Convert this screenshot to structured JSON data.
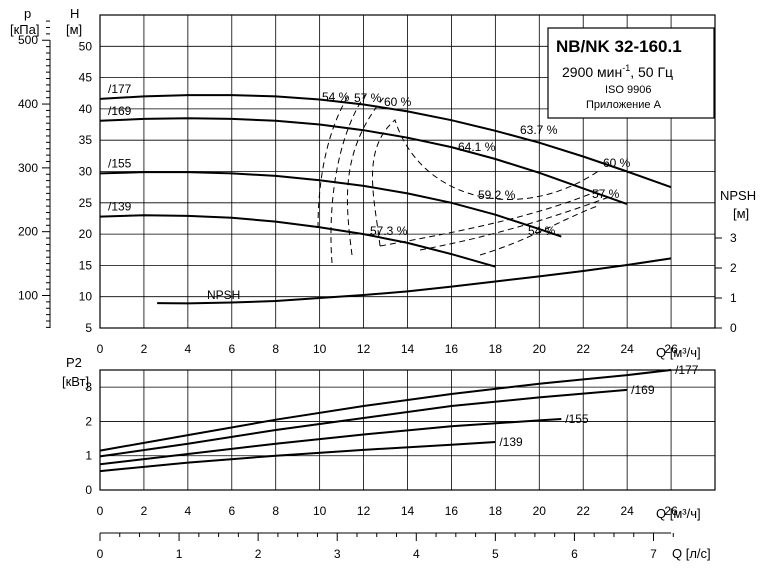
{
  "chart_data": [
    {
      "type": "line",
      "title": "NB/NK 32-160.1",
      "subtitle_lines": [
        "2900 мин",
        "-1",
        ", 50 Гц",
        "ISO 9906",
        "Приложение А"
      ],
      "xlabel": "Q [м³/ч]",
      "ylabel": "H",
      "ylabel_unit": "[м]",
      "pressure_label": "p",
      "pressure_unit": "[кПа]",
      "npsh_label": "NPSH",
      "npsh_unit": "[м]",
      "xlim": [
        0,
        28
      ],
      "ylim": [
        5,
        55
      ],
      "x_ticks": [
        "0",
        "2",
        "4",
        "6",
        "8",
        "10",
        "12",
        "14",
        "16",
        "18",
        "20",
        "22",
        "24",
        "26"
      ],
      "y_ticks": [
        "5",
        "10",
        "15",
        "20",
        "25",
        "30",
        "35",
        "40",
        "45",
        "50"
      ],
      "pressure_ticks": [
        "100",
        "200",
        "300",
        "400",
        "500"
      ],
      "npsh_ticks": [
        "0",
        "1",
        "2",
        "3"
      ],
      "series": [
        {
          "name": "/177",
          "x": [
            0,
            2,
            4,
            6,
            8,
            10,
            12,
            14,
            16,
            18,
            20,
            22,
            24,
            26
          ],
          "y": [
            41.6,
            42.0,
            42.2,
            42.2,
            42.0,
            41.5,
            40.7,
            39.6,
            38.2,
            36.5,
            34.6,
            32.4,
            30.0,
            27.5
          ]
        },
        {
          "name": "/169",
          "x": [
            0,
            2,
            4,
            6,
            8,
            10,
            12,
            14,
            16,
            18,
            20,
            22,
            24
          ],
          "y": [
            38.1,
            38.4,
            38.5,
            38.4,
            38.1,
            37.5,
            36.6,
            35.4,
            33.9,
            32.0,
            29.8,
            27.3,
            24.8
          ]
        },
        {
          "name": "/155",
          "x": [
            0,
            2,
            4,
            6,
            8,
            10,
            12,
            14,
            16,
            18,
            20,
            21
          ],
          "y": [
            29.7,
            29.9,
            29.9,
            29.7,
            29.3,
            28.6,
            27.7,
            26.5,
            25.0,
            23.1,
            20.8,
            19.6
          ]
        },
        {
          "name": "/139",
          "x": [
            0,
            2,
            4,
            6,
            8,
            10,
            12,
            14,
            16,
            18
          ],
          "y": [
            22.8,
            23.0,
            22.9,
            22.6,
            22.0,
            21.1,
            20.0,
            18.6,
            16.8,
            14.8
          ]
        }
      ],
      "npsh_series": {
        "name": "NPSH",
        "x": [
          2.6,
          4,
          6,
          8,
          10,
          12,
          14,
          16,
          18,
          20,
          22,
          24,
          26
        ],
        "y": [
          0.83,
          0.82,
          0.85,
          0.9,
          1.0,
          1.1,
          1.22,
          1.38,
          1.55,
          1.72,
          1.9,
          2.1,
          2.32
        ]
      },
      "efficiency_labels": [
        "54 %",
        "57 %",
        "60 %",
        "63.7 %",
        "64.1 %",
        "59.2 %",
        "57.3 %",
        "54 %",
        "57 %",
        "60 %"
      ]
    },
    {
      "type": "line",
      "ylabel": "P2",
      "ylabel_unit": "[кВт]",
      "xlabel": "Q [м³/ч]",
      "xlim": [
        0,
        28
      ],
      "ylim": [
        0,
        3.5
      ],
      "x_ticks": [
        "0",
        "2",
        "4",
        "6",
        "8",
        "10",
        "12",
        "14",
        "16",
        "18",
        "20",
        "22",
        "24",
        "26"
      ],
      "y_ticks": [
        "0",
        "1",
        "2",
        "3"
      ],
      "series": [
        {
          "name": "/177",
          "x": [
            0,
            4,
            8,
            12,
            16,
            20,
            24,
            26
          ],
          "y": [
            1.15,
            1.6,
            2.05,
            2.45,
            2.8,
            3.1,
            3.35,
            3.5
          ]
        },
        {
          "name": "/169",
          "x": [
            0,
            4,
            8,
            12,
            16,
            20,
            24
          ],
          "y": [
            0.98,
            1.35,
            1.75,
            2.1,
            2.45,
            2.7,
            2.92
          ]
        },
        {
          "name": "/155",
          "x": [
            0,
            4,
            8,
            12,
            16,
            20,
            21
          ],
          "y": [
            0.75,
            1.05,
            1.35,
            1.62,
            1.86,
            2.03,
            2.07
          ]
        },
        {
          "name": "/139",
          "x": [
            0,
            4,
            8,
            12,
            16,
            18
          ],
          "y": [
            0.55,
            0.8,
            1.0,
            1.17,
            1.32,
            1.4
          ]
        }
      ]
    },
    {
      "type": "axis",
      "xlabel": "Q [л/с]",
      "xlim": [
        0,
        7.78
      ],
      "x_ticks": [
        "0",
        "1",
        "2",
        "3",
        "4",
        "5",
        "6",
        "7"
      ]
    }
  ]
}
